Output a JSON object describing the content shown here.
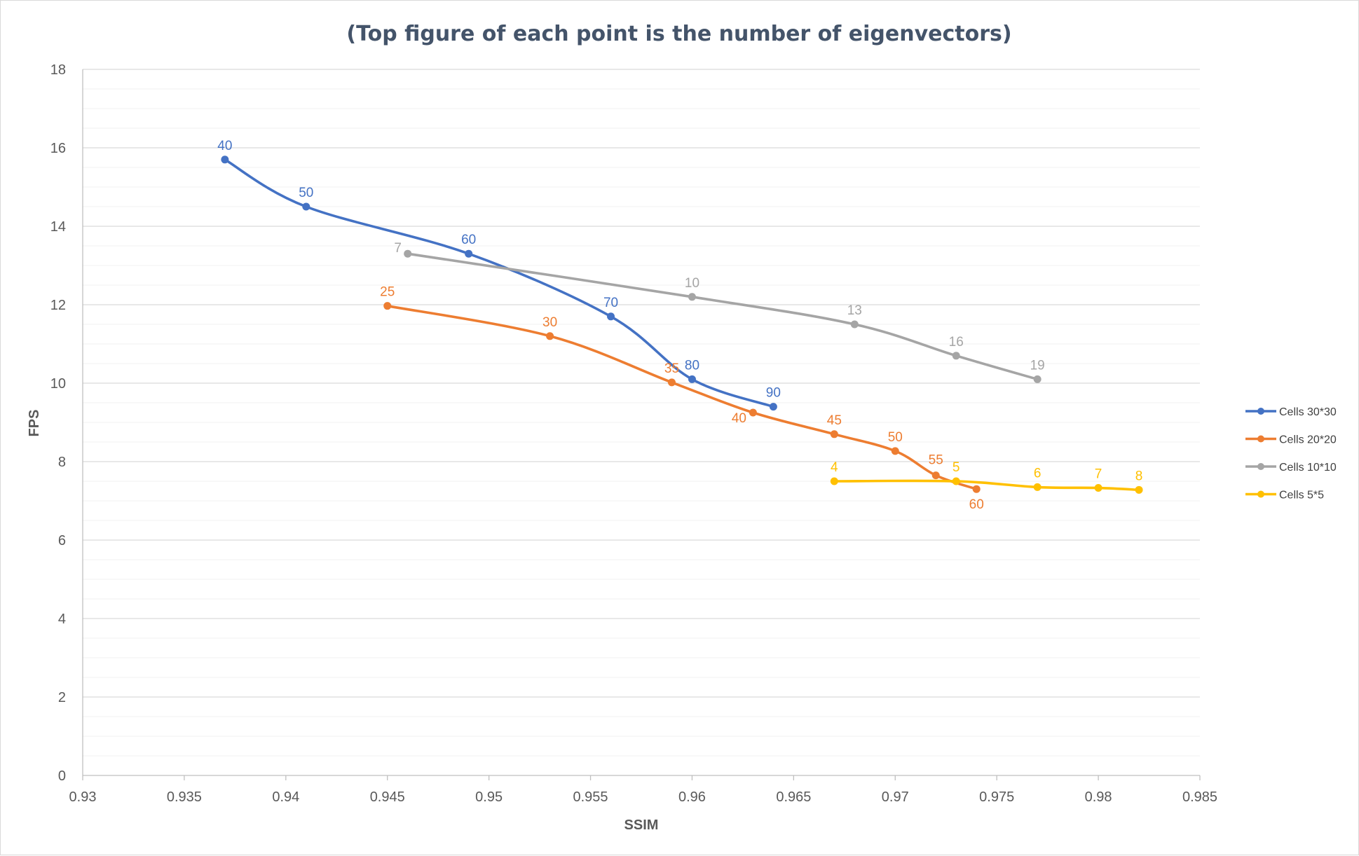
{
  "chart_data": {
    "type": "scatter",
    "title": "(Top figure of each point is the number of eigenvectors)",
    "xlabel": "SSIM",
    "ylabel": "FPS",
    "xlim": [
      0.93,
      0.985
    ],
    "ylim": [
      0,
      18
    ],
    "x_ticks": [
      "0.93",
      "0.935",
      "0.94",
      "0.945",
      "0.95",
      "0.955",
      "0.96",
      "0.965",
      "0.97",
      "0.975",
      "0.98",
      "0.985"
    ],
    "y_ticks": [
      "0",
      "2",
      "4",
      "6",
      "8",
      "10",
      "12",
      "14",
      "16",
      "18"
    ],
    "grid": true,
    "legend_position": "right",
    "series": [
      {
        "name": "Cells 30*30",
        "color": "#4472c4",
        "points": [
          {
            "x": 0.937,
            "y": 15.7,
            "label": "40"
          },
          {
            "x": 0.941,
            "y": 14.5,
            "label": "50"
          },
          {
            "x": 0.949,
            "y": 13.3,
            "label": "60"
          },
          {
            "x": 0.956,
            "y": 11.7,
            "label": "70"
          },
          {
            "x": 0.96,
            "y": 10.1,
            "label": "80"
          },
          {
            "x": 0.964,
            "y": 9.4,
            "label": "90"
          }
        ]
      },
      {
        "name": "Cells 20*20",
        "color": "#ed7d31",
        "points": [
          {
            "x": 0.945,
            "y": 11.97,
            "label": "25"
          },
          {
            "x": 0.953,
            "y": 11.2,
            "label": "30"
          },
          {
            "x": 0.959,
            "y": 10.02,
            "label": "35"
          },
          {
            "x": 0.963,
            "y": 9.25,
            "label": "40"
          },
          {
            "x": 0.967,
            "y": 8.7,
            "label": "45"
          },
          {
            "x": 0.97,
            "y": 8.27,
            "label": "50"
          },
          {
            "x": 0.972,
            "y": 7.65,
            "label": "55"
          },
          {
            "x": 0.974,
            "y": 7.3,
            "label": "60"
          }
        ]
      },
      {
        "name": "Cells 10*10",
        "color": "#a5a5a5",
        "points": [
          {
            "x": 0.946,
            "y": 13.3,
            "label": "7"
          },
          {
            "x": 0.96,
            "y": 12.2,
            "label": "10"
          },
          {
            "x": 0.968,
            "y": 11.5,
            "label": "13"
          },
          {
            "x": 0.973,
            "y": 10.7,
            "label": "16"
          },
          {
            "x": 0.977,
            "y": 10.1,
            "label": "19"
          }
        ]
      },
      {
        "name": "Cells 5*5",
        "color": "#ffc000",
        "points": [
          {
            "x": 0.967,
            "y": 7.5,
            "label": "4"
          },
          {
            "x": 0.973,
            "y": 7.5,
            "label": "5"
          },
          {
            "x": 0.977,
            "y": 7.35,
            "label": "6"
          },
          {
            "x": 0.98,
            "y": 7.33,
            "label": "7"
          },
          {
            "x": 0.982,
            "y": 7.28,
            "label": "8"
          }
        ]
      }
    ]
  }
}
